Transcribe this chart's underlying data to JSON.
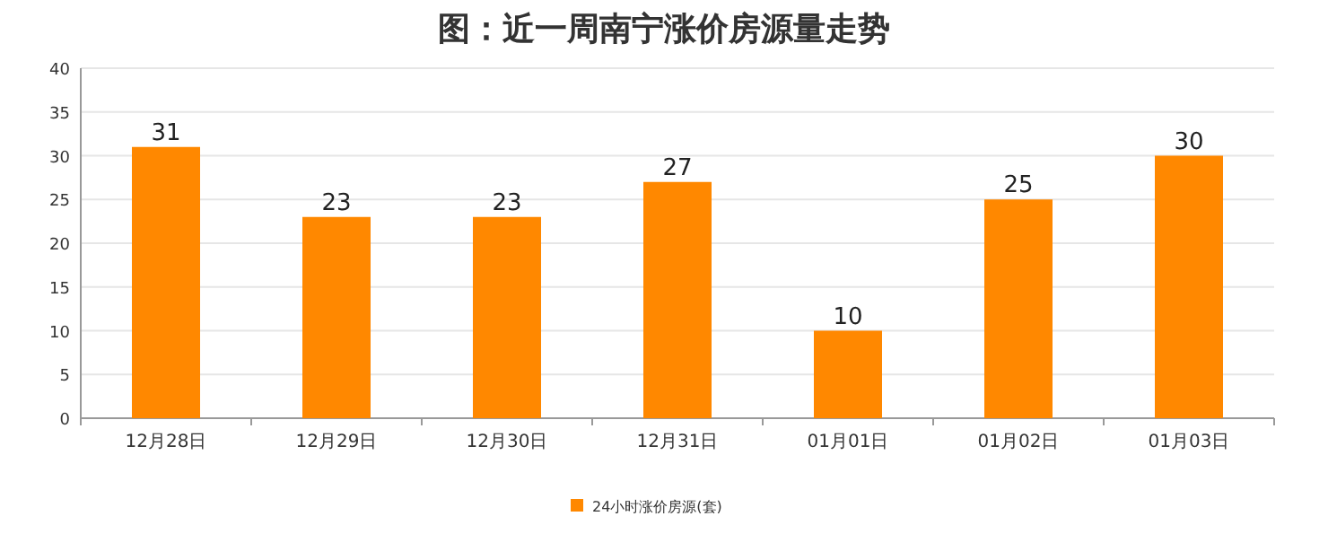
{
  "chart_data": {
    "type": "bar",
    "title": "图：近一周南宁涨价房源量走势",
    "categories": [
      "12月28日",
      "12月29日",
      "12月30日",
      "12月31日",
      "01月01日",
      "01月02日",
      "01月03日"
    ],
    "series": [
      {
        "name": "24小时涨价房源(套)",
        "color": "#ff8800",
        "values": [
          31,
          23,
          23,
          27,
          10,
          25,
          30
        ]
      }
    ],
    "ylim": [
      0,
      40
    ],
    "yticks": [
      0,
      5,
      10,
      15,
      20,
      25,
      30,
      35,
      40
    ],
    "grid": "y",
    "legend": "bottom",
    "data_labels": true
  }
}
